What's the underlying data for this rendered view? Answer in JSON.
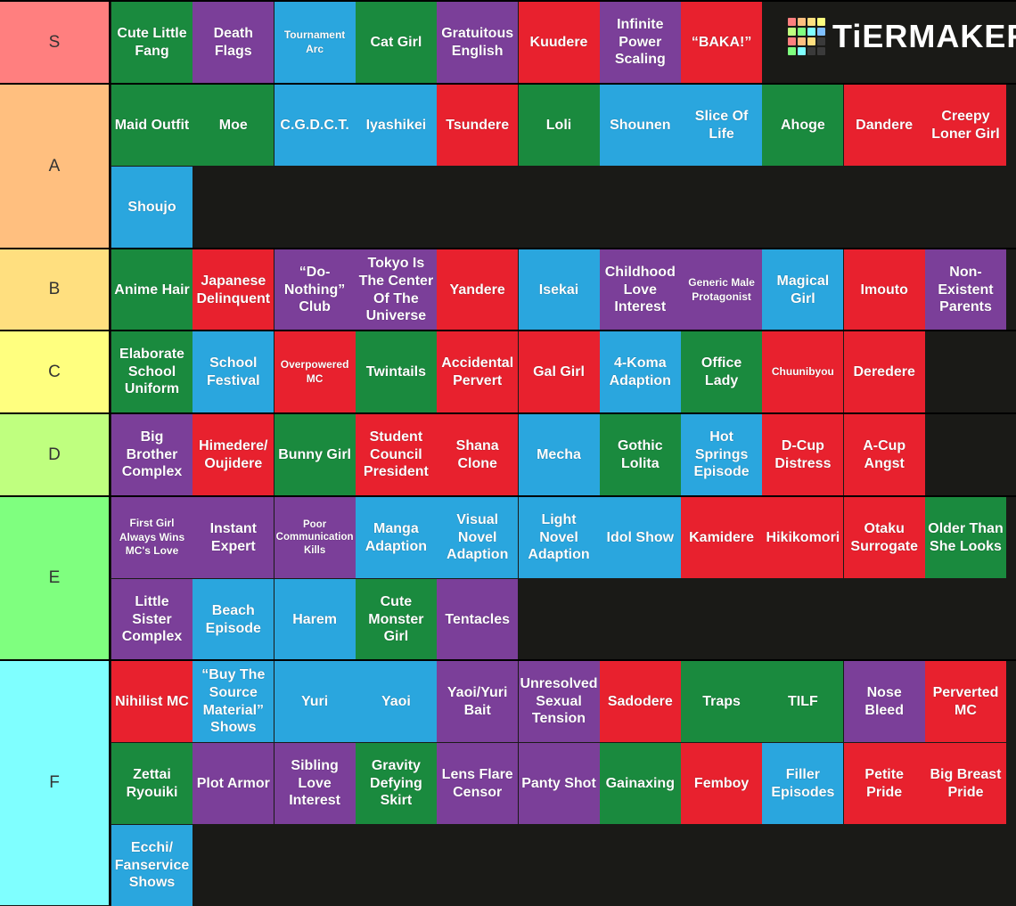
{
  "brand": {
    "name": "TiERMAKER",
    "logo_colors": [
      "#ff7f7f",
      "#ffbf7f",
      "#ffdf7f",
      "#ffff7f",
      "#bfff7f",
      "#7fff7f",
      "#7fffff",
      "#7fbfff",
      "#ff7f7f",
      "#ffbf7f",
      "#ffdf7f",
      "#3a3a3a",
      "#7fff7f",
      "#7fffff",
      "#3a3a3a",
      "#3a3a3a"
    ]
  },
  "colors": {
    "green": "#1a8a3e",
    "purple": "#7b3f99",
    "blue": "#2aa6de",
    "red": "#e8212e"
  },
  "tiers": [
    {
      "label": "S",
      "color": "#ff7f7f",
      "items": [
        {
          "text": "Cute Little Fang",
          "color": "green"
        },
        {
          "text": "Death Flags",
          "color": "purple"
        },
        {
          "text": "Tournament Arc",
          "color": "blue",
          "size": "sm"
        },
        {
          "text": "Cat Girl",
          "color": "green"
        },
        {
          "text": "Gratuitous English",
          "color": "purple"
        },
        {
          "text": "Kuudere",
          "color": "red"
        },
        {
          "text": "Infinite Power Scaling",
          "color": "purple"
        },
        {
          "text": "“BAKA!”",
          "color": "red"
        }
      ]
    },
    {
      "label": "A",
      "color": "#ffbf7f",
      "items": [
        {
          "text": "Maid Outfit",
          "color": "green"
        },
        {
          "text": "Moe",
          "color": "green"
        },
        {
          "text": "C.G.D.C.T.",
          "color": "blue"
        },
        {
          "text": "Iyashikei",
          "color": "blue"
        },
        {
          "text": "Tsundere",
          "color": "red"
        },
        {
          "text": "Loli",
          "color": "green"
        },
        {
          "text": "Shounen",
          "color": "blue"
        },
        {
          "text": "Slice Of Life",
          "color": "blue"
        },
        {
          "text": "Ahoge",
          "color": "green"
        },
        {
          "text": "Dandere",
          "color": "red"
        },
        {
          "text": "Creepy Loner Girl",
          "color": "red"
        },
        {
          "text": "Shoujo",
          "color": "blue"
        }
      ]
    },
    {
      "label": "B",
      "color": "#ffdf7f",
      "items": [
        {
          "text": "Anime Hair",
          "color": "green"
        },
        {
          "text": "Japanese Delinquent",
          "color": "red"
        },
        {
          "text": "“Do-Nothing” Club",
          "color": "purple"
        },
        {
          "text": "Tokyo Is The Center Of The Universe",
          "color": "purple"
        },
        {
          "text": "Yandere",
          "color": "red"
        },
        {
          "text": "Isekai",
          "color": "blue"
        },
        {
          "text": "Childhood Love Interest",
          "color": "purple"
        },
        {
          "text": "Generic Male Protagonist",
          "color": "purple",
          "size": "sm"
        },
        {
          "text": "Magical Girl",
          "color": "blue"
        },
        {
          "text": "Imouto",
          "color": "red"
        },
        {
          "text": "Non-Existent Parents",
          "color": "purple"
        }
      ]
    },
    {
      "label": "C",
      "color": "#ffff7f",
      "items": [
        {
          "text": "Elaborate School Uniform",
          "color": "green"
        },
        {
          "text": "School Festival",
          "color": "blue"
        },
        {
          "text": "Overpowered MC",
          "color": "red",
          "size": "sm"
        },
        {
          "text": "Twintails",
          "color": "green"
        },
        {
          "text": "Accidental Pervert",
          "color": "red"
        },
        {
          "text": "Gal Girl",
          "color": "red"
        },
        {
          "text": "4-Koma Adaption",
          "color": "blue"
        },
        {
          "text": "Office Lady",
          "color": "green"
        },
        {
          "text": "Chuunibyou",
          "color": "red",
          "size": "sm"
        },
        {
          "text": "Deredere",
          "color": "red"
        }
      ]
    },
    {
      "label": "D",
      "color": "#bfff7f",
      "items": [
        {
          "text": "Big Brother Complex",
          "color": "purple"
        },
        {
          "text": "Himedere/ Oujidere",
          "color": "red"
        },
        {
          "text": "Bunny Girl",
          "color": "green"
        },
        {
          "text": "Student Council President",
          "color": "red"
        },
        {
          "text": "Shana Clone",
          "color": "red"
        },
        {
          "text": "Mecha",
          "color": "blue"
        },
        {
          "text": "Gothic Lolita",
          "color": "green"
        },
        {
          "text": "Hot Springs Episode",
          "color": "blue"
        },
        {
          "text": "D-Cup Distress",
          "color": "red"
        },
        {
          "text": "A-Cup Angst",
          "color": "red"
        }
      ]
    },
    {
      "label": "E",
      "color": "#7fff7f",
      "items": [
        {
          "text": "First Girl Always Wins MC's Love",
          "color": "purple",
          "size": "sm"
        },
        {
          "text": "Instant Expert",
          "color": "purple"
        },
        {
          "text": "Poor Communication Kills",
          "color": "purple",
          "size": "xs"
        },
        {
          "text": "Manga Adaption",
          "color": "blue"
        },
        {
          "text": "Visual Novel Adaption",
          "color": "blue"
        },
        {
          "text": "Light Novel Adaption",
          "color": "blue"
        },
        {
          "text": "Idol Show",
          "color": "blue"
        },
        {
          "text": "Kamidere",
          "color": "red"
        },
        {
          "text": "Hikikomori",
          "color": "red"
        },
        {
          "text": "Otaku Surrogate",
          "color": "red"
        },
        {
          "text": "Older Than She Looks",
          "color": "green"
        },
        {
          "text": "Little Sister Complex",
          "color": "purple"
        },
        {
          "text": "Beach Episode",
          "color": "blue"
        },
        {
          "text": "Harem",
          "color": "blue"
        },
        {
          "text": "Cute Monster Girl",
          "color": "green"
        },
        {
          "text": "Tentacles",
          "color": "purple"
        }
      ]
    },
    {
      "label": "F",
      "color": "#7fffff",
      "items": [
        {
          "text": "Nihilist MC",
          "color": "red"
        },
        {
          "text": "“Buy The Source Material” Shows",
          "color": "blue"
        },
        {
          "text": "Yuri",
          "color": "blue"
        },
        {
          "text": "Yaoi",
          "color": "blue"
        },
        {
          "text": "Yaoi/Yuri Bait",
          "color": "purple"
        },
        {
          "text": "Unresolved Sexual Tension",
          "color": "purple"
        },
        {
          "text": "Sadodere",
          "color": "red"
        },
        {
          "text": "Traps",
          "color": "green"
        },
        {
          "text": "TILF",
          "color": "green"
        },
        {
          "text": "Nose Bleed",
          "color": "purple"
        },
        {
          "text": "Perverted MC",
          "color": "red"
        },
        {
          "text": "Zettai Ryouiki",
          "color": "green"
        },
        {
          "text": "Plot Armor",
          "color": "purple"
        },
        {
          "text": "Sibling Love Interest",
          "color": "purple"
        },
        {
          "text": "Gravity Defying Skirt",
          "color": "green"
        },
        {
          "text": "Lens Flare Censor",
          "color": "purple"
        },
        {
          "text": "Panty Shot",
          "color": "purple"
        },
        {
          "text": "Gainaxing",
          "color": "green"
        },
        {
          "text": "Femboy",
          "color": "red"
        },
        {
          "text": "Filler Episodes",
          "color": "blue"
        },
        {
          "text": "Petite Pride",
          "color": "red"
        },
        {
          "text": "Big Breast Pride",
          "color": "red"
        },
        {
          "text": "Ecchi/ Fanservice Shows",
          "color": "blue"
        }
      ]
    }
  ]
}
